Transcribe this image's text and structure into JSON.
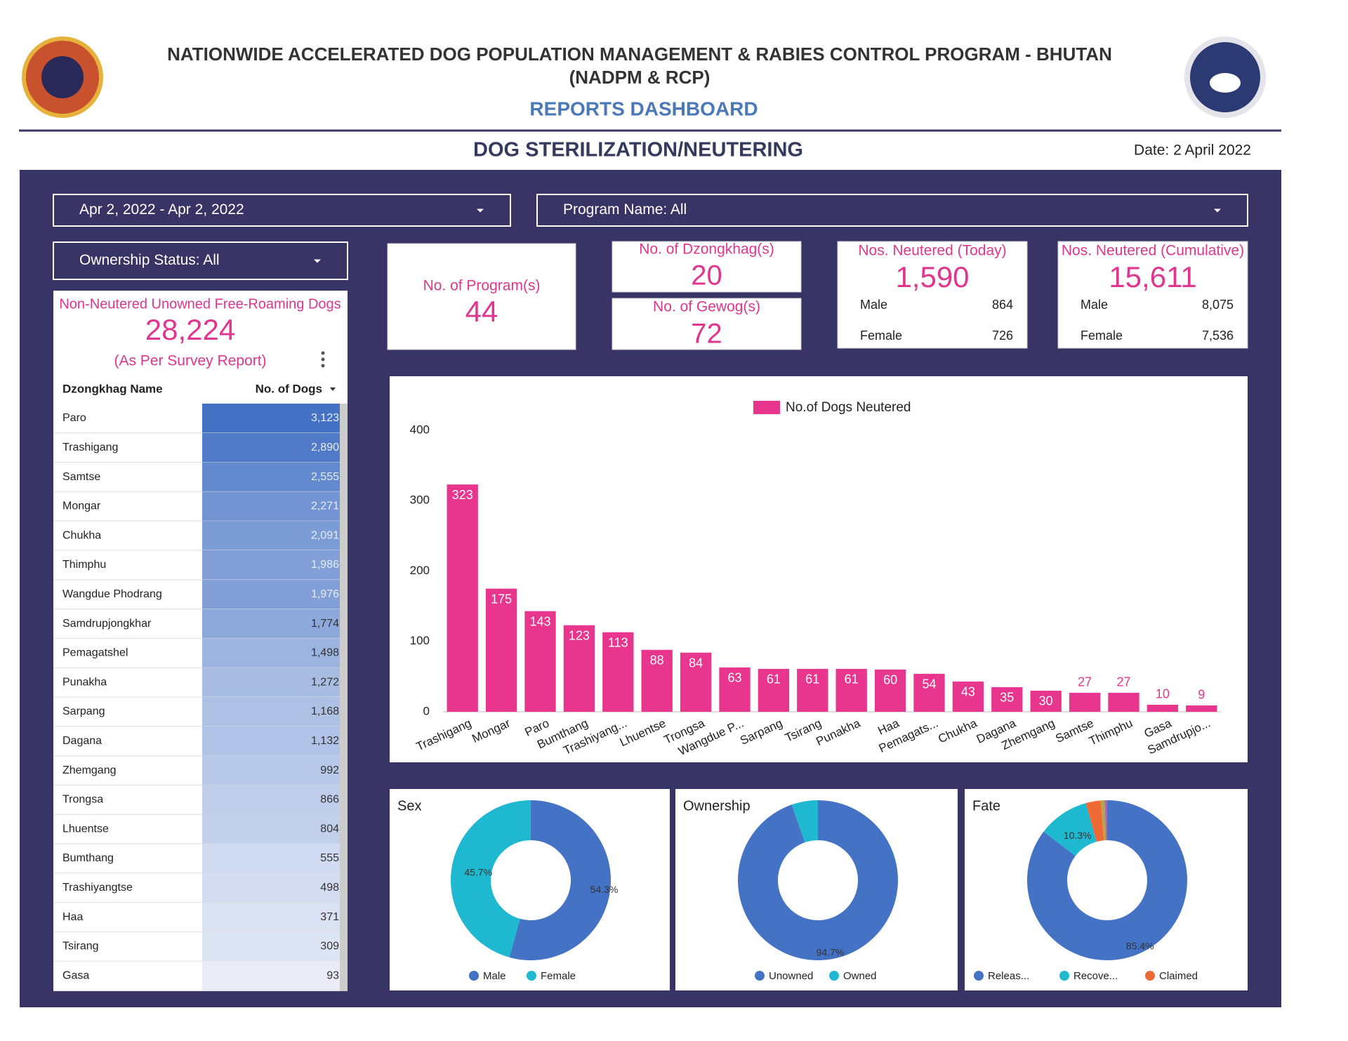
{
  "header": {
    "title": "NATIONWIDE ACCELERATED DOG POPULATION MANAGEMENT & RABIES CONTROL PROGRAM - BHUTAN",
    "acronym": "(NADPM & RCP)",
    "subtitle": "REPORTS DASHBOARD",
    "section": "DOG STERILIZATION/NEUTERING",
    "date": "Date: 2 April 2022"
  },
  "filters": {
    "date_range": "Apr 2, 2022 - Apr 2, 2022",
    "program": "Program Name: All",
    "ownership": "Ownership Status: All"
  },
  "kpis": {
    "programs": {
      "label": "No. of Program(s)",
      "value": "44"
    },
    "dzongkhags": {
      "label": "No. of Dzongkhag(s)",
      "value": "20"
    },
    "gewogs": {
      "label": "No. of Gewog(s)",
      "value": "72"
    },
    "today": {
      "label": "Nos. Neutered (Today)",
      "value": "1,590",
      "rows": [
        [
          "Male",
          "864"
        ],
        [
          "Female",
          "726"
        ]
      ]
    },
    "cumulative": {
      "label": "Nos. Neutered (Cumulative)",
      "value": "15,611",
      "rows": [
        [
          "Male",
          "8,075"
        ],
        [
          "Female",
          "7,536"
        ]
      ]
    }
  },
  "survey": {
    "label": "Non-Neutered Unowned Free-Roaming Dogs",
    "value": "28,224",
    "note": "(As Per Survey Report)"
  },
  "table": {
    "columns": [
      "Dzongkhag Name",
      "No. of Dogs"
    ],
    "rows": [
      [
        "Paro",
        "3,123"
      ],
      [
        "Trashigang",
        "2,890"
      ],
      [
        "Samtse",
        "2,555"
      ],
      [
        "Mongar",
        "2,271"
      ],
      [
        "Chukha",
        "2,091"
      ],
      [
        "Thimphu",
        "1,986"
      ],
      [
        "Wangdue Phodrang",
        "1,976"
      ],
      [
        "Samdrupjongkhar",
        "1,774"
      ],
      [
        "Pemagatshel",
        "1,498"
      ],
      [
        "Punakha",
        "1,272"
      ],
      [
        "Sarpang",
        "1,168"
      ],
      [
        "Dagana",
        "1,132"
      ],
      [
        "Zhemgang",
        "992"
      ],
      [
        "Trongsa",
        "866"
      ],
      [
        "Lhuentse",
        "804"
      ],
      [
        "Bumthang",
        "555"
      ],
      [
        "Trashiyangtse",
        "498"
      ],
      [
        "Haa",
        "371"
      ],
      [
        "Tsirang",
        "309"
      ],
      [
        "Gasa",
        "93"
      ]
    ]
  },
  "chart_data": [
    {
      "type": "bar",
      "categories": [
        "Trashigang",
        "Mongar",
        "Paro",
        "Bumthang",
        "Trashiyang...",
        "Lhuentse",
        "Trongsa",
        "Wangdue P...",
        "Sarpang",
        "Tsirang",
        "Punakha",
        "Haa",
        "Pemagats...",
        "Chukha",
        "Dagana",
        "Zhemgang",
        "Samtse",
        "Thimphu",
        "Gasa",
        "Samdrupjo..."
      ],
      "series": [
        {
          "name": "No.of Dogs Neutered",
          "color": "#e8368f",
          "values": [
            323,
            175,
            143,
            123,
            113,
            88,
            84,
            63,
            61,
            61,
            61,
            60,
            54,
            43,
            35,
            30,
            27,
            27,
            10,
            9
          ]
        }
      ],
      "ylim": [
        0,
        400
      ],
      "yticks": [
        0,
        100,
        200,
        300,
        400
      ],
      "legend": "top"
    },
    {
      "type": "donut",
      "title": "Sex",
      "categories": [
        "Male",
        "Female"
      ],
      "values": [
        54.3,
        45.7
      ],
      "value_labels": [
        "54.3%",
        "45.7%"
      ],
      "colors": [
        "#4472c4",
        "#1eb9d0"
      ]
    },
    {
      "type": "donut",
      "title": "Ownership",
      "categories": [
        "Unowned",
        "Owned"
      ],
      "values": [
        94.7,
        5.3
      ],
      "value_labels": [
        "94.7%",
        null
      ],
      "colors": [
        "#4472c4",
        "#1eb9d0"
      ]
    },
    {
      "type": "donut",
      "title": "Fate",
      "categories": [
        "Releas...",
        "Recove...",
        "Claimed",
        null,
        null
      ],
      "values": [
        85.4,
        10.3,
        3.0,
        0.8,
        0.5
      ],
      "value_labels": [
        "85.4%",
        "10.3%",
        null,
        null,
        null
      ],
      "colors": [
        "#4472c4",
        "#1eb9d0",
        "#f06a35",
        "#b9a348",
        "#9c6fb2"
      ]
    }
  ]
}
